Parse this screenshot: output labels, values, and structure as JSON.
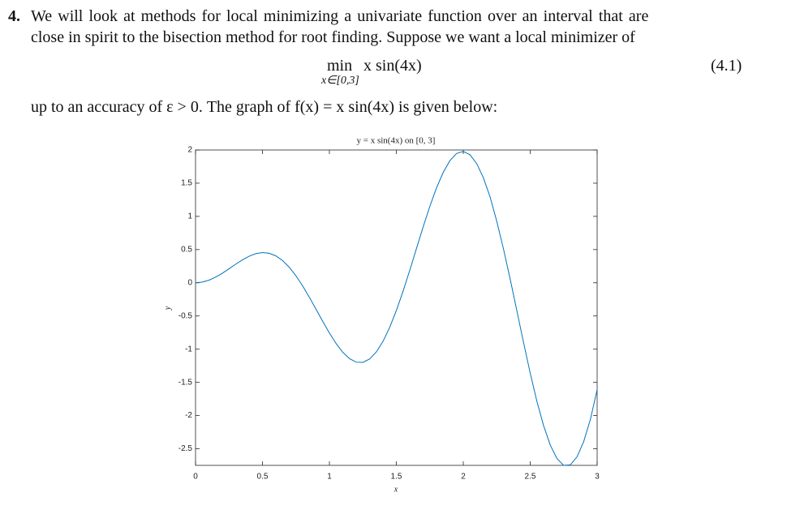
{
  "problem": {
    "number": "4.",
    "lines": [
      "We will look at methods for local minimizing a univariate function over an interval that are",
      "close in spirit to the bisection method for root finding. Suppose we want a local minimizer of"
    ],
    "equation": {
      "operator": "min",
      "subscript": "x∈[0,3]",
      "expression": "x sin(4x)",
      "label": "(4.1)"
    },
    "after": "up to an accuracy of ε > 0. The graph of f(x) = x sin(4x) is given below:"
  },
  "chart_data": {
    "type": "line",
    "title": "y = x sin(4x) on [0, 3]",
    "x_label": "x",
    "y_label": "y",
    "x": [
      0,
      0.05,
      0.1,
      0.15,
      0.2,
      0.25,
      0.3,
      0.35,
      0.4,
      0.45,
      0.5,
      0.55,
      0.6,
      0.65,
      0.7,
      0.75,
      0.8,
      0.85,
      0.9,
      0.95,
      1,
      1.05,
      1.1,
      1.15,
      1.2,
      1.25,
      1.3,
      1.35,
      1.4,
      1.45,
      1.5,
      1.55,
      1.6,
      1.65,
      1.7,
      1.75,
      1.8,
      1.85,
      1.9,
      1.95,
      2,
      2.05,
      2.1,
      2.15,
      2.2,
      2.25,
      2.3,
      2.35,
      2.4,
      2.45,
      2.5,
      2.55,
      2.6,
      2.65,
      2.7,
      2.75,
      2.8,
      2.85,
      2.9,
      2.95,
      3
    ],
    "values": [
      0,
      0.0099,
      0.0389,
      0.0847,
      0.1435,
      0.2104,
      0.2796,
      0.3449,
      0.3998,
      0.4382,
      0.4546,
      0.4447,
      0.4053,
      0.3351,
      0.2345,
      0.1058,
      -0.0467,
      -0.2172,
      -0.3983,
      -0.5813,
      -0.7568,
      -0.9152,
      -1.0468,
      -1.1427,
      -1.1954,
      -1.1987,
      -1.1485,
      -1.0432,
      -0.8838,
      -0.6737,
      -0.4191,
      -0.1286,
      0.1865,
      0.514,
      0.84,
      1.1497,
      1.4286,
      1.6626,
      1.839,
      1.9472,
      1.9787,
      1.9288,
      1.7959,
      1.5824,
      1.2946,
      0.9273,
      0.5126,
      0.0582,
      -0.4184,
      -0.8979,
      -1.3601,
      -1.7847,
      -2.1524,
      -2.4452,
      -2.6485,
      -2.75,
      -2.7417,
      -2.6207,
      -2.389,
      -2.0536,
      -1.6097
    ],
    "color": "#0072bd",
    "xlim": [
      0,
      3
    ],
    "xticks": [
      0,
      0.5,
      1,
      1.5,
      2,
      2.5,
      3
    ],
    "ylim": [
      -2.75,
      2
    ],
    "yticks": [
      -2.5,
      -2,
      -1.5,
      -1,
      -0.5,
      0,
      0.5,
      1,
      1.5,
      2
    ]
  }
}
